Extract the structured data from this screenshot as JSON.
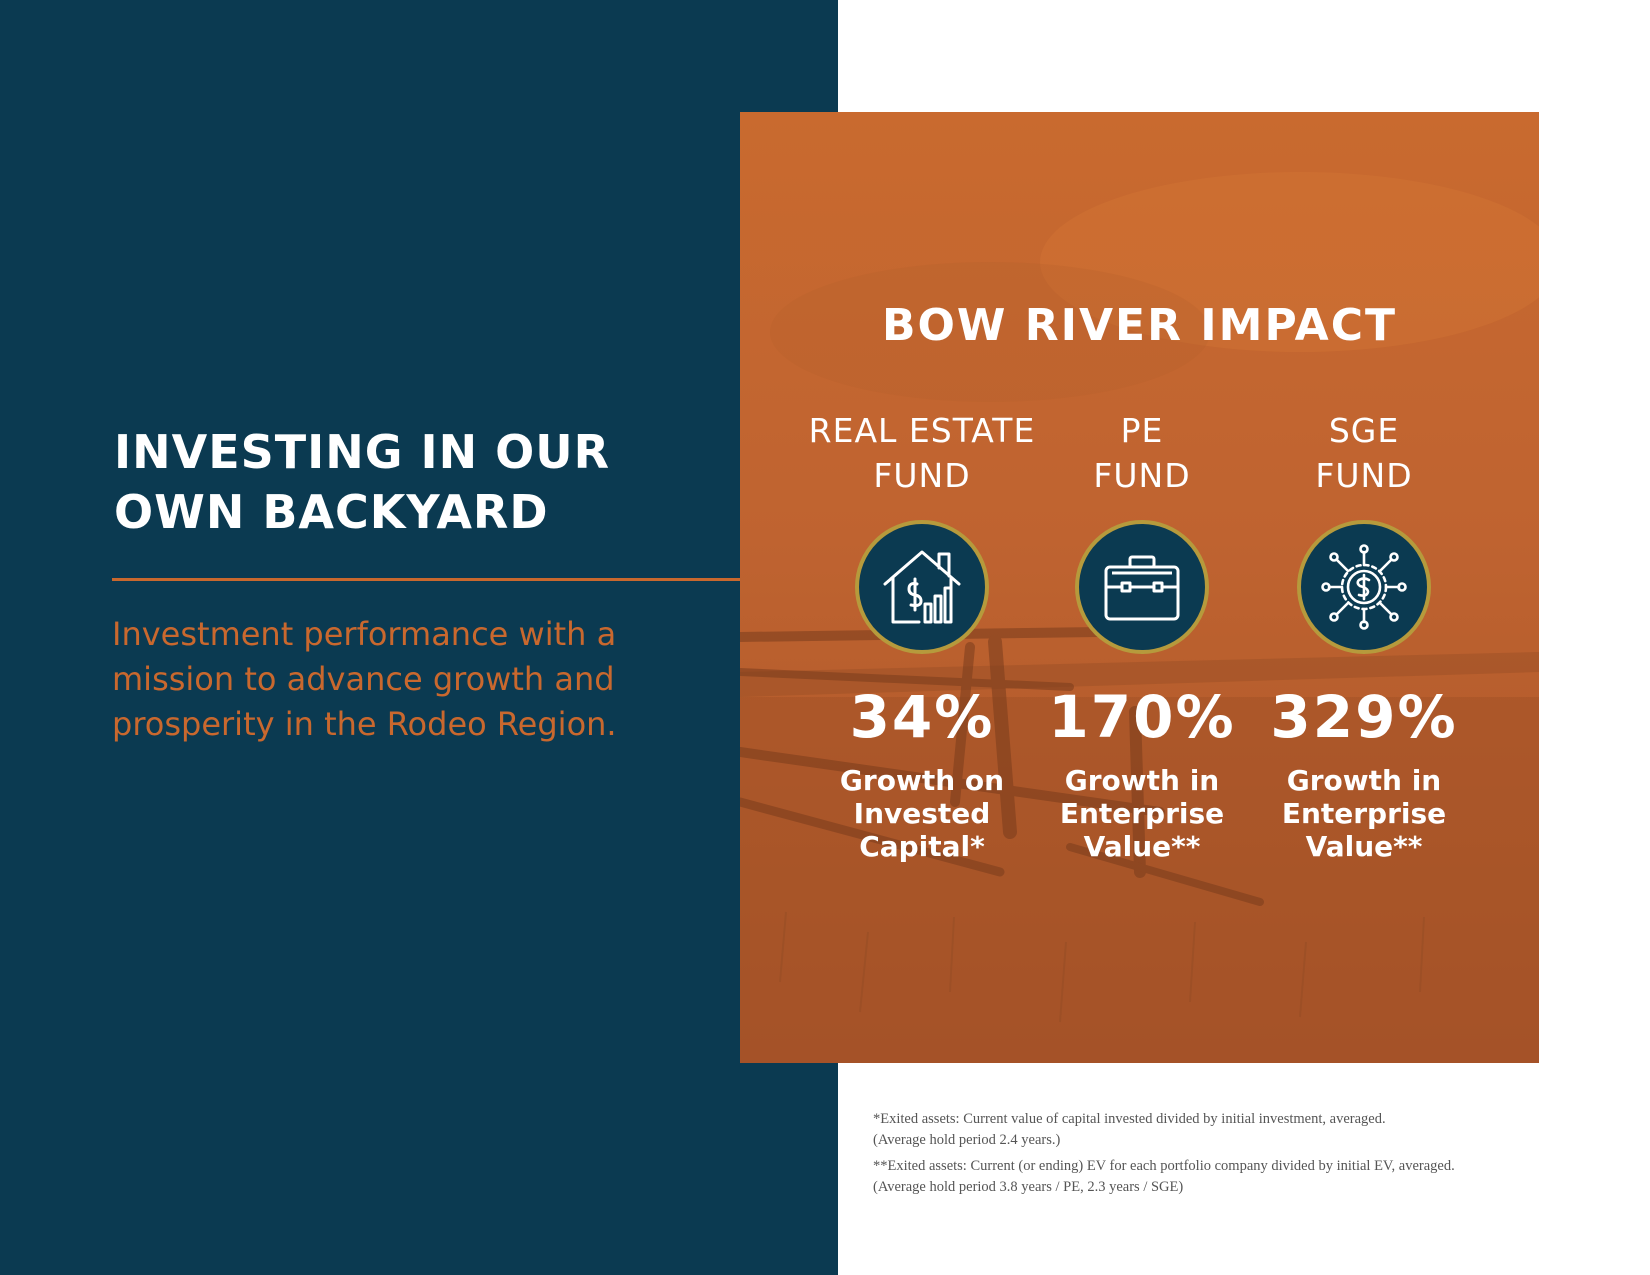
{
  "left": {
    "headline_line1": "INVESTING IN OUR",
    "headline_line2": "OWN BACKYARD",
    "tagline_line1": "Investment performance with a",
    "tagline_line2": "mission to advance growth and",
    "tagline_line3": "prosperity in the Rodeo Region."
  },
  "card": {
    "title": "BOW RIVER IMPACT",
    "funds": [
      {
        "name_line1": "REAL ESTATE",
        "name_line2": "FUND",
        "icon": "house-chart-dollar-icon",
        "value": "34%",
        "metric_line1": "Growth on",
        "metric_line2": "Invested",
        "metric_line3": "Capital*"
      },
      {
        "name_line1": "PE",
        "name_line2": "FUND",
        "icon": "briefcase-icon",
        "value": "170%",
        "metric_line1": "Growth in",
        "metric_line2": "Enterprise",
        "metric_line3": "Value**"
      },
      {
        "name_line1": "SGE",
        "name_line2": "FUND",
        "icon": "dollar-network-icon",
        "value": "329%",
        "metric_line1": "Growth in",
        "metric_line2": "Enterprise",
        "metric_line3": "Value**"
      }
    ]
  },
  "footnotes": {
    "note1_line1": "*Exited assets: Current value of capital invested divided by initial investment, averaged.",
    "note1_line2": "(Average hold period 2.4 years.)",
    "note2_line1": "**Exited assets: Current (or ending) EV for each portfolio company divided by initial EV, averaged.",
    "note2_line2": "(Average hold period 3.8 years / PE, 2.3 years / SGE)"
  },
  "colors": {
    "navy": "#0b3a51",
    "orange": "#c9682e",
    "gold_ring": "#b69a3c"
  }
}
